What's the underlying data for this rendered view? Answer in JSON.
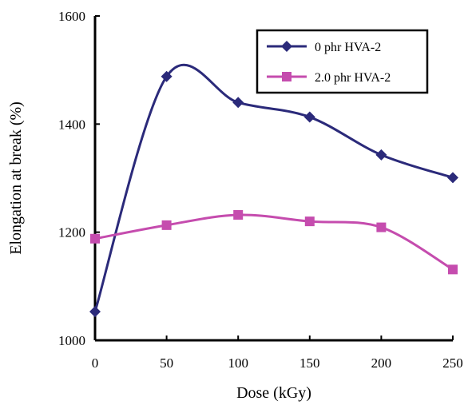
{
  "chart_data": {
    "type": "line",
    "smooth": true,
    "x": [
      0,
      50,
      100,
      150,
      200,
      250
    ],
    "series": [
      {
        "name": "0 phr HVA-2",
        "values": [
          1053,
          1488,
          1440,
          1413,
          1343,
          1301
        ],
        "color": "#2b2a7a",
        "marker": "diamond"
      },
      {
        "name": "2.0 phr HVA-2",
        "values": [
          1188,
          1213,
          1232,
          1220,
          1209,
          1131
        ],
        "color": "#c54cae",
        "marker": "square"
      }
    ],
    "xlabel": "Dose (kGy)",
    "ylabel": "Elongation at break (%)",
    "xlim": [
      0,
      250
    ],
    "ylim": [
      1000,
      1600
    ],
    "xticks": [
      "0",
      "50",
      "100",
      "150",
      "200",
      "250"
    ],
    "yticks": [
      "1000",
      "1200",
      "1400",
      "1600"
    ],
    "grid": false,
    "legend_position": "top-right"
  }
}
